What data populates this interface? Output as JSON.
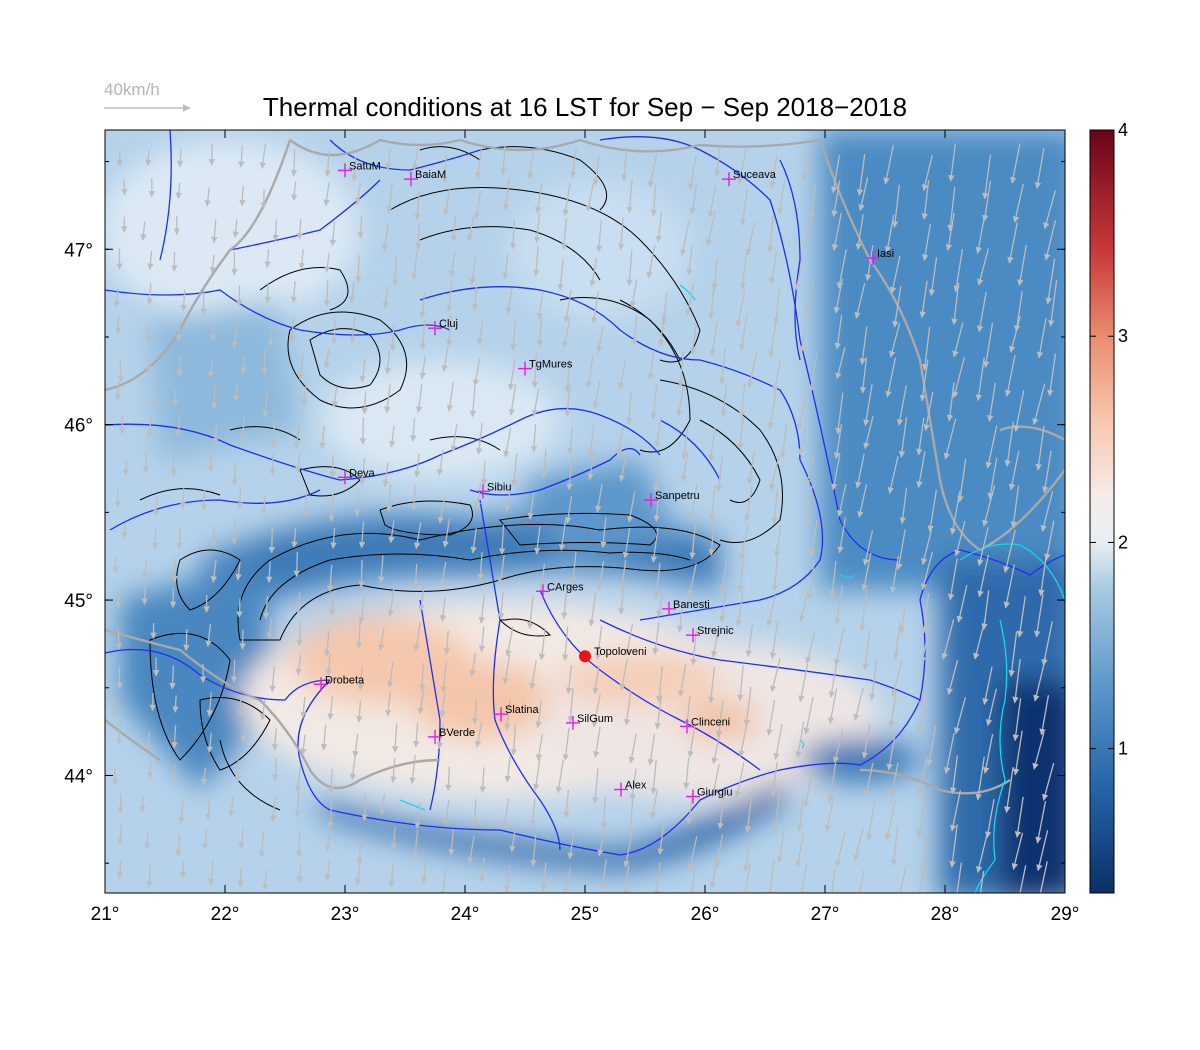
{
  "title": "Thermal conditions at 16 LST for Sep − Sep  2018−2018",
  "wind_scale_label": "40km/h",
  "map": {
    "lon_range": [
      21,
      29
    ],
    "lat_range": [
      43.33,
      47.68
    ],
    "lon_ticks": [
      "21°",
      "22°",
      "23°",
      "24°",
      "25°",
      "26°",
      "27°",
      "28°",
      "29°"
    ],
    "lat_ticks": [
      "44°",
      "45°",
      "46°",
      "47°"
    ]
  },
  "colorbar": {
    "range": [
      0.3,
      4.0
    ],
    "ticks": [
      "1",
      "2",
      "3",
      "4"
    ],
    "colors": {
      "low": "#0b2f66",
      "mid_low": "#3f83bf",
      "light": "#c6dcee",
      "white": "#f4f2f0",
      "peach": "#f5c5a8",
      "high": "#7a0418"
    }
  },
  "colors": {
    "rivers": "#1f2ff0",
    "borders": "#a8a8a8",
    "contours": "#000000",
    "station_marker": "#e020e0",
    "highlight": "#ee1111",
    "lakes": "#14d7e8",
    "wind_arrows": "#b8b8b8"
  },
  "stations": [
    {
      "name": "SatuM",
      "lon": 23.0,
      "lat": 47.45
    },
    {
      "name": "BaiaM",
      "lon": 23.55,
      "lat": 47.4
    },
    {
      "name": "Suceava",
      "lon": 26.2,
      "lat": 47.4
    },
    {
      "name": "Iasi",
      "lon": 27.4,
      "lat": 46.95
    },
    {
      "name": "Cluj",
      "lon": 23.75,
      "lat": 46.55
    },
    {
      "name": "TgMures",
      "lon": 24.5,
      "lat": 46.32
    },
    {
      "name": "Deva",
      "lon": 23.0,
      "lat": 45.7
    },
    {
      "name": "Sibiu",
      "lon": 24.15,
      "lat": 45.62
    },
    {
      "name": "Sanpetru",
      "lon": 25.55,
      "lat": 45.57
    },
    {
      "name": "CArges",
      "lon": 24.65,
      "lat": 45.05
    },
    {
      "name": "Banesti",
      "lon": 25.7,
      "lat": 44.95
    },
    {
      "name": "Strejnic",
      "lon": 25.9,
      "lat": 44.8
    },
    {
      "name": "Drobeta",
      "lon": 22.8,
      "lat": 44.52
    },
    {
      "name": "Slatina",
      "lon": 24.3,
      "lat": 44.35
    },
    {
      "name": "SilGum",
      "lon": 24.9,
      "lat": 44.3
    },
    {
      "name": "Clinceni",
      "lon": 25.85,
      "lat": 44.28
    },
    {
      "name": "BVerde",
      "lon": 23.75,
      "lat": 44.22
    },
    {
      "name": "Alex",
      "lon": 25.3,
      "lat": 43.92
    },
    {
      "name": "Giurgiu",
      "lon": 25.9,
      "lat": 43.88
    }
  ],
  "highlight_station": {
    "name": "Topoloveni",
    "lon": 25.0,
    "lat": 44.68
  }
}
